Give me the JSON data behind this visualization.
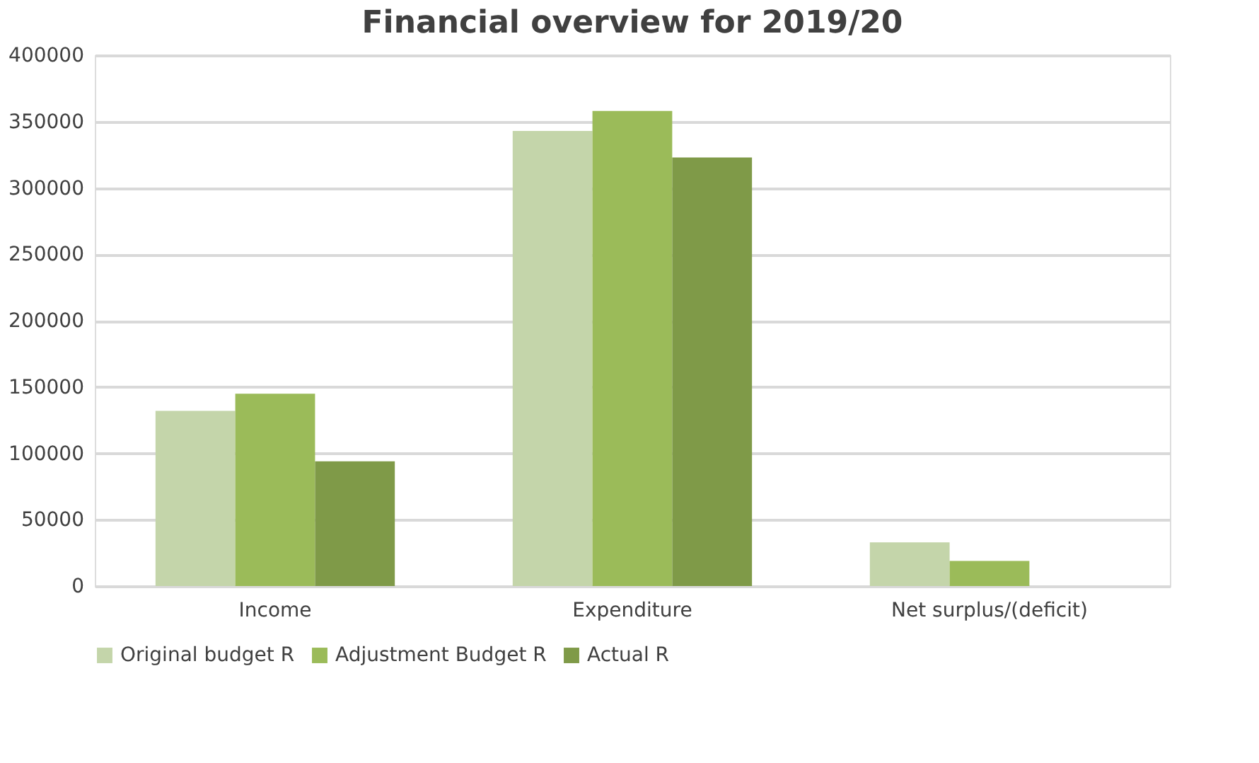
{
  "chart_data": {
    "type": "bar",
    "title": "Financial overview for 2019/20",
    "categories": [
      "Income",
      "Expenditure",
      "Net surplus/(deficit)"
    ],
    "series": [
      {
        "name": "Original budget R",
        "color": "#c4d5aa",
        "values": [
          132000,
          343000,
          33000
        ]
      },
      {
        "name": "Adjustment Budget R",
        "color": "#9bbb59",
        "values": [
          145000,
          358000,
          19000
        ]
      },
      {
        "name": "Actual R",
        "color": "#7f9a48",
        "values": [
          94000,
          323000,
          null
        ]
      }
    ],
    "ylim": [
      0,
      400000
    ],
    "yticks": [
      0,
      50000,
      100000,
      150000,
      200000,
      250000,
      300000,
      350000,
      400000
    ],
    "grid": "y",
    "legend": "bottom"
  }
}
